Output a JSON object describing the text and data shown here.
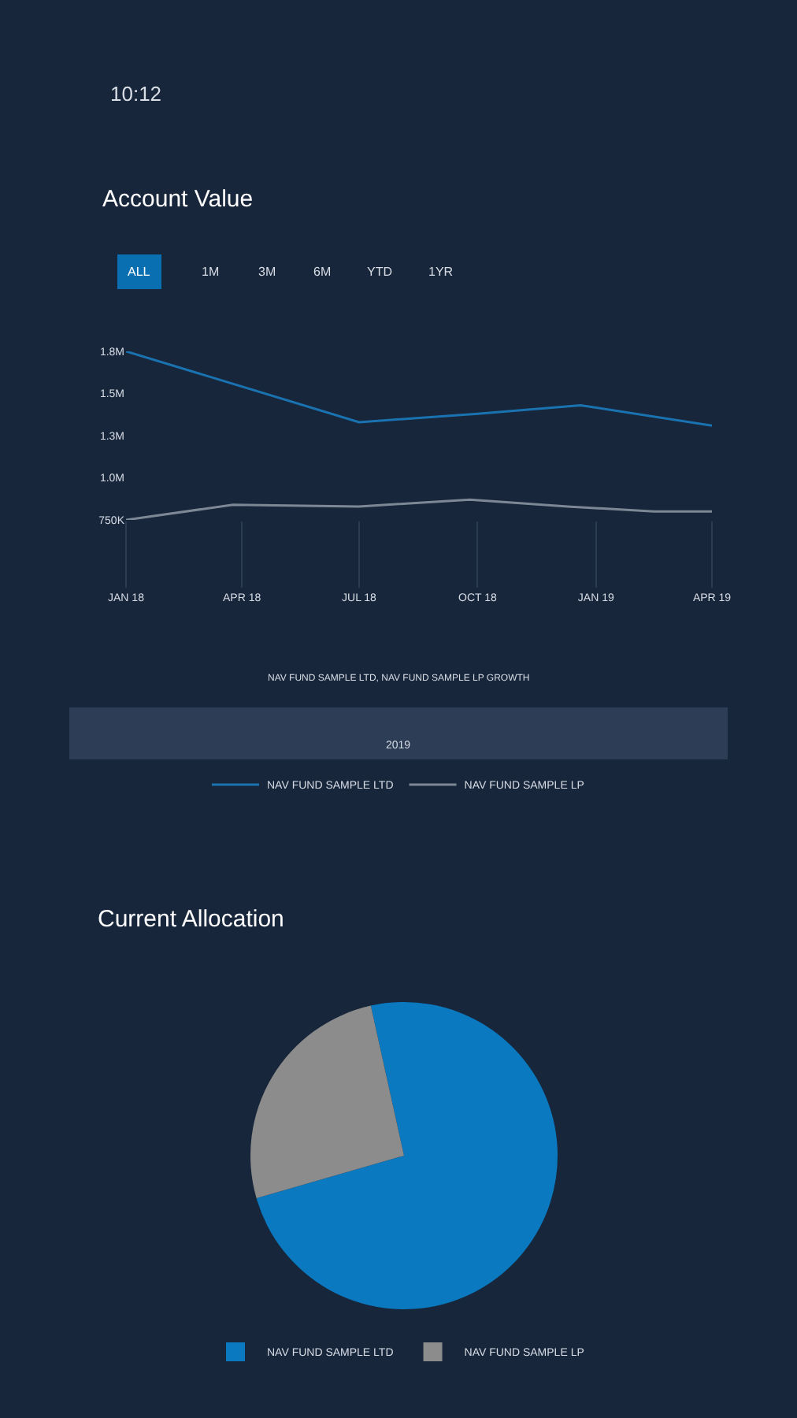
{
  "chart_data": [
    {
      "type": "line",
      "title": "Account Value",
      "series": [
        {
          "name": "NAV FUND SAMPLE LTD",
          "color": "#1a73b0",
          "x": [
            "2018-01-01",
            "2018-07-01",
            "2018-10-01",
            "2018-12-20",
            "2019-04-01"
          ],
          "values": [
            1750000,
            1330000,
            1380000,
            1430000,
            1310000
          ]
        },
        {
          "name": "NAV FUND SAMPLE LP",
          "color": "#7d8896",
          "x": [
            "2018-01-01",
            "2018-03-25",
            "2018-07-01",
            "2018-09-25",
            "2018-12-10",
            "2019-02-15",
            "2019-04-01"
          ],
          "values": [
            750000,
            840000,
            830000,
            870000,
            830000,
            800000,
            800000
          ]
        }
      ],
      "xlim": [
        "2018-01-01",
        "2019-04-01"
      ],
      "xticks": [
        {
          "value": "2018-01-01",
          "label": "JAN 18"
        },
        {
          "value": "2018-04-01",
          "label": "APR 18"
        },
        {
          "value": "2018-07-01",
          "label": "JUL 18"
        },
        {
          "value": "2018-10-01",
          "label": "OCT 18"
        },
        {
          "value": "2019-01-01",
          "label": "JAN 19"
        },
        {
          "value": "2019-04-01",
          "label": "APR 19"
        }
      ],
      "ylim": [
        750000,
        1750000
      ],
      "yticks": [
        {
          "value": 750000,
          "label": "750K"
        },
        {
          "value": 1000000,
          "label": "1.0M"
        },
        {
          "value": 1250000,
          "label": "1.3M"
        },
        {
          "value": 1500000,
          "label": "1.5M"
        },
        {
          "value": 1750000,
          "label": "1.8M"
        }
      ],
      "grid": false,
      "marker": "none",
      "line_style": "solid",
      "legend": "bottom",
      "annotations": [
        "10:12",
        "ALL",
        "1M",
        "3M",
        "6M",
        "YTD",
        "1YR",
        "NAV FUND SAMPLE LTD, NAV FUND SAMPLE LP GROWTH",
        "2019"
      ]
    },
    {
      "type": "pie",
      "title": "Current Allocation",
      "categories": [
        "NAV FUND SAMPLE LTD",
        "NAV FUND SAMPLE LP"
      ],
      "values": [
        74,
        26
      ],
      "colors": [
        "#0a79bf",
        "#8c8c8c"
      ],
      "legend": "bottom"
    }
  ]
}
